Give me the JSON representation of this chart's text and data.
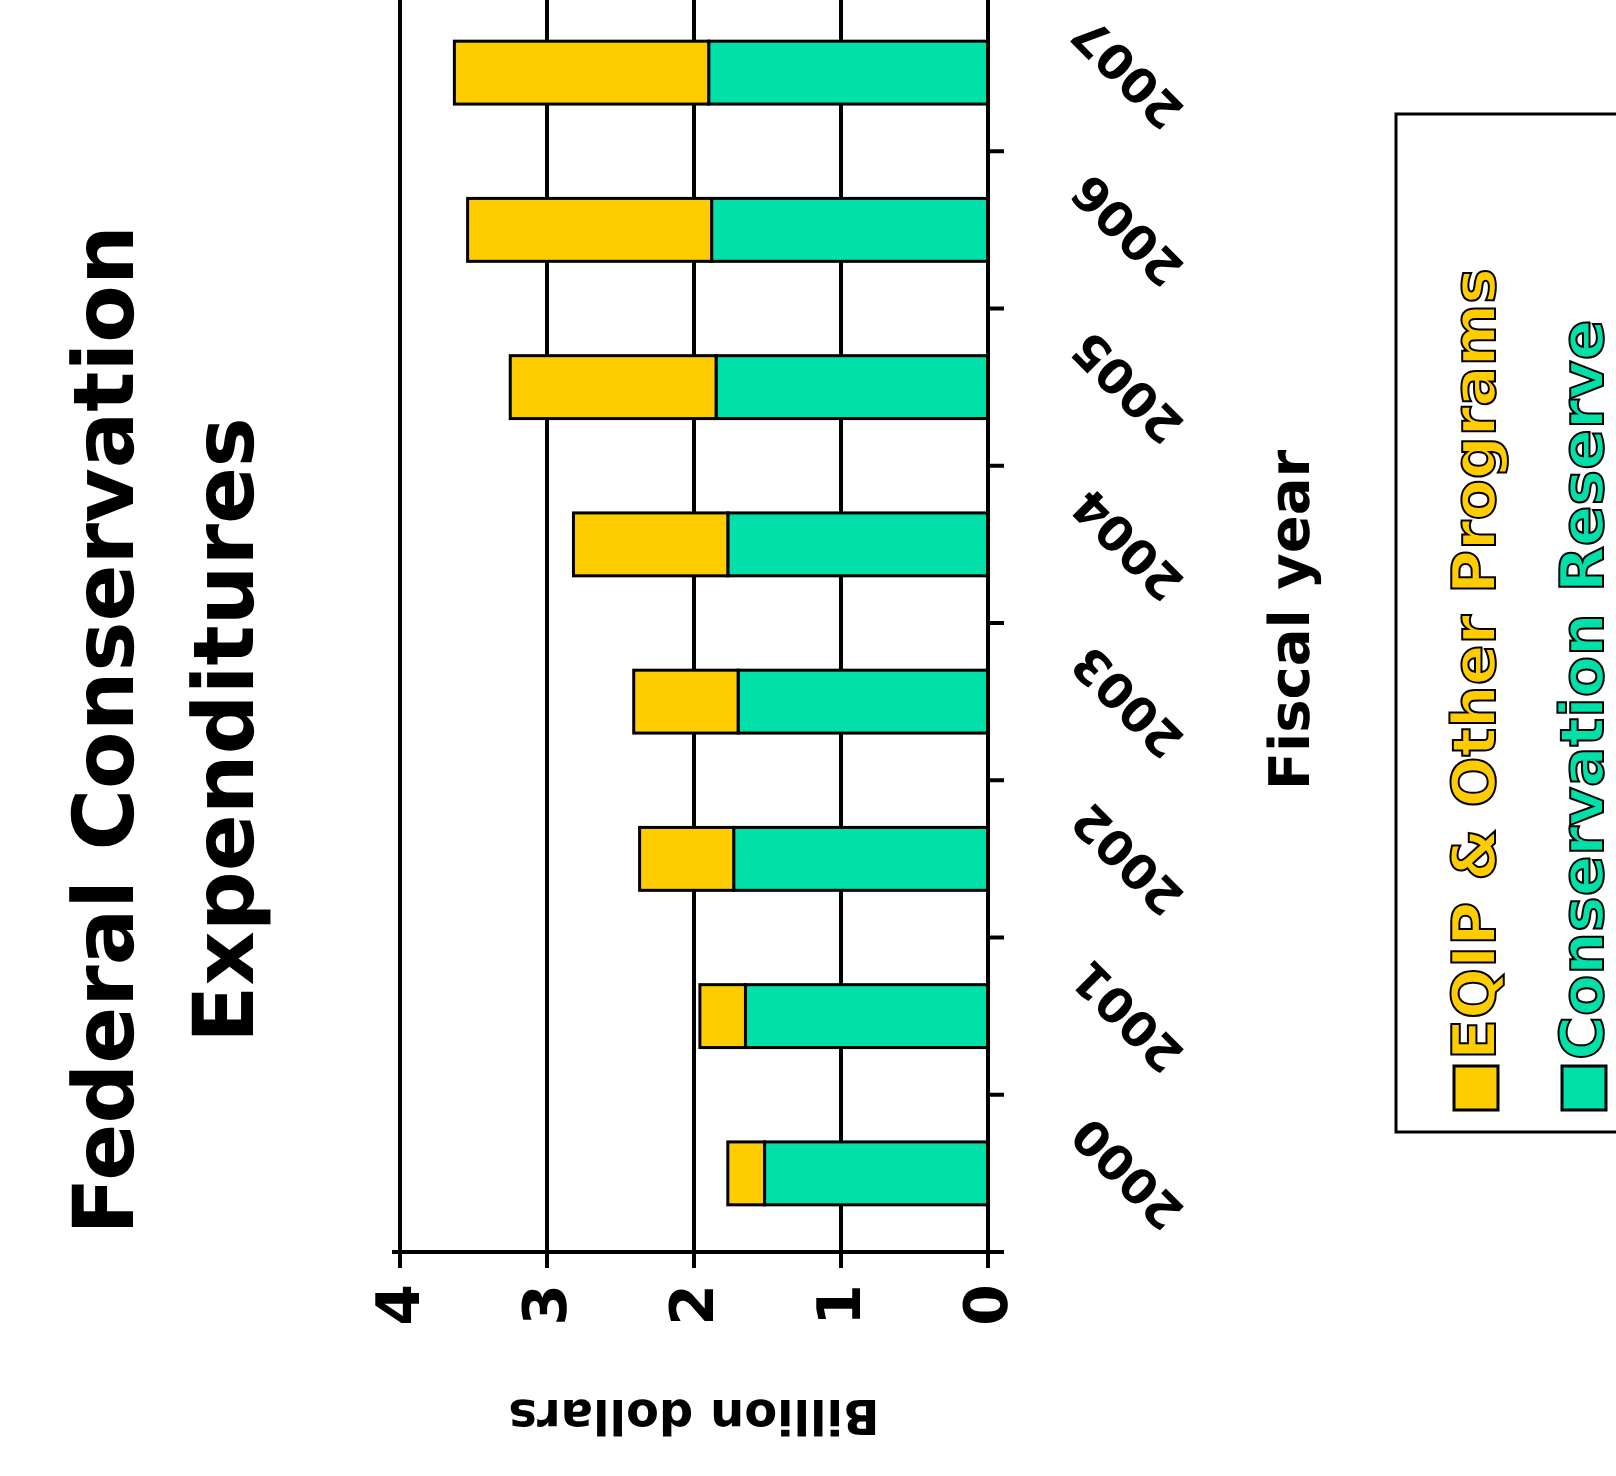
{
  "chart_data": {
    "type": "bar",
    "orientation": "horizontal",
    "title": "Federal Conservation Expenditures",
    "xlabel": "Billion dollars",
    "ylabel": "Fiscal year",
    "categories": [
      "2007",
      "2006",
      "2005",
      "2004",
      "2003",
      "2002",
      "2001",
      "2000"
    ],
    "series": [
      {
        "name": "Conservation Reserve",
        "color": "#00e0a8",
        "values": [
          1.9,
          1.88,
          1.85,
          1.77,
          1.7,
          1.73,
          1.65,
          1.52
        ]
      },
      {
        "name": "EQIP & Other Programs",
        "color": "#ffcc00",
        "values": [
          1.73,
          1.66,
          1.4,
          1.05,
          0.71,
          0.64,
          0.31,
          0.25
        ]
      }
    ],
    "stacked": true,
    "xlim": [
      4,
      0
    ],
    "xticks": [
      4,
      3,
      2,
      1,
      0
    ],
    "grid": "x",
    "legend": "right"
  }
}
